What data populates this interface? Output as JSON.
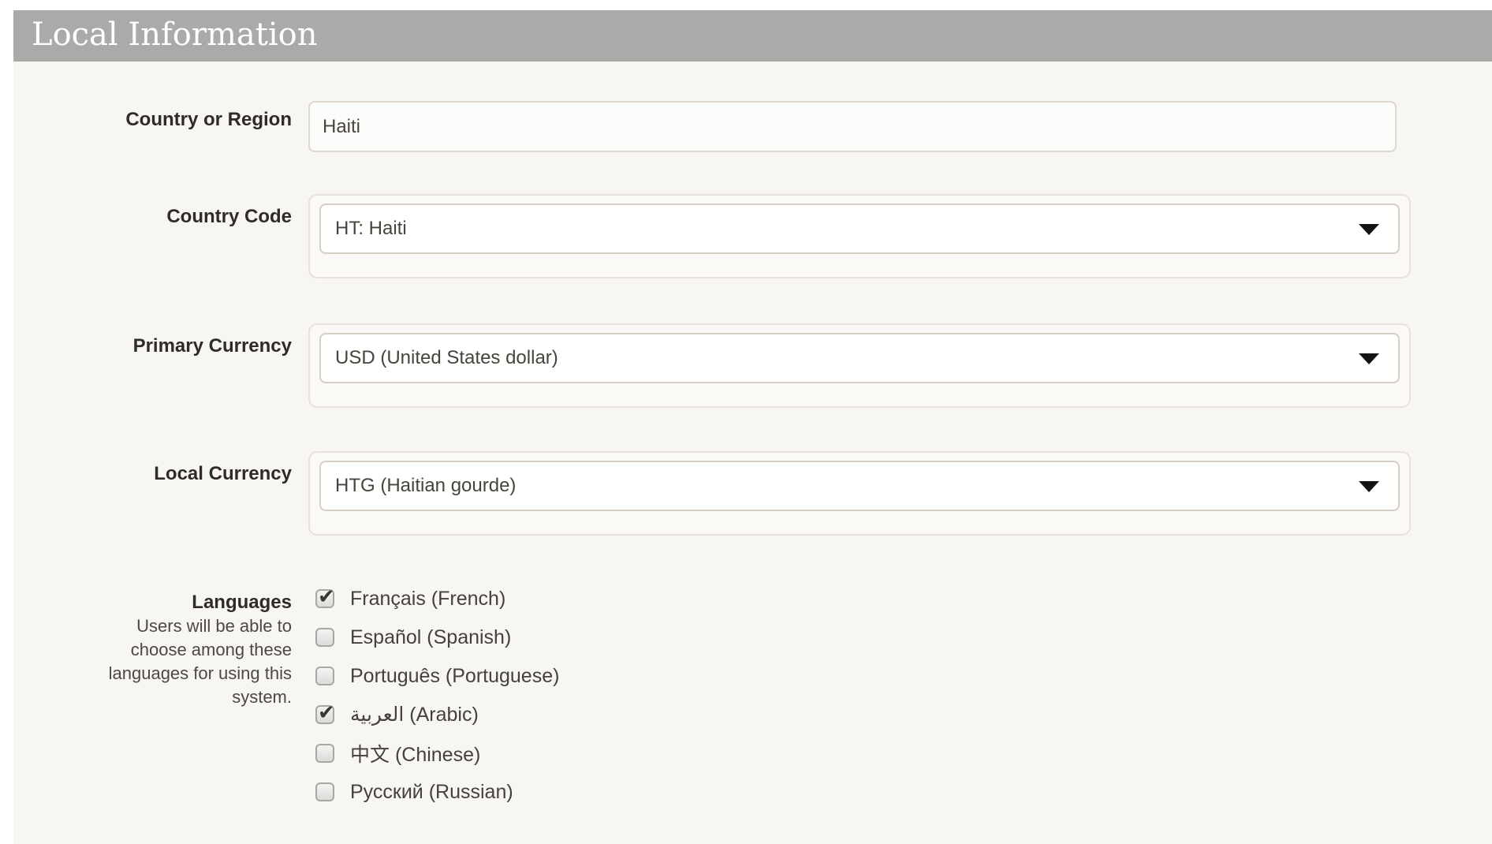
{
  "header": {
    "title": "Local Information"
  },
  "form": {
    "fields": [
      {
        "label": "Country or Region",
        "type": "text",
        "value": "Haiti"
      },
      {
        "label": "Country Code",
        "type": "select",
        "value": "HT: Haiti"
      },
      {
        "label": "Primary Currency",
        "type": "select",
        "value": "USD (United States dollar)"
      },
      {
        "label": "Local Currency",
        "type": "select",
        "value": "HTG (Haitian gourde)"
      }
    ],
    "languages": {
      "label": "Languages",
      "help": "Users will be able to choose among these languages for using this system.",
      "options": [
        {
          "label": "Français (French)",
          "checked": true
        },
        {
          "label": "Español (Spanish)",
          "checked": false
        },
        {
          "label": "Português (Portuguese)",
          "checked": false
        },
        {
          "label": "العربية (Arabic)",
          "checked": true
        },
        {
          "label": "中文 (Chinese)",
          "checked": false
        },
        {
          "label": "Русский (Russian)",
          "checked": false
        }
      ]
    }
  },
  "icons": {
    "select_arrow": "chevron-down-triangle",
    "checkbox_check": "checkmark"
  },
  "colors": {
    "page_background": "#ffffff",
    "panel_background": "#f7f6f3",
    "header_background": "#abaaa8",
    "header_text": "#ffffff",
    "input_border": "#ded8ce",
    "select_outer_border": "#e7e2da",
    "select_inner_border": "#d5cfc3",
    "label_text": "#2f2c28",
    "value_text": "#474340"
  }
}
